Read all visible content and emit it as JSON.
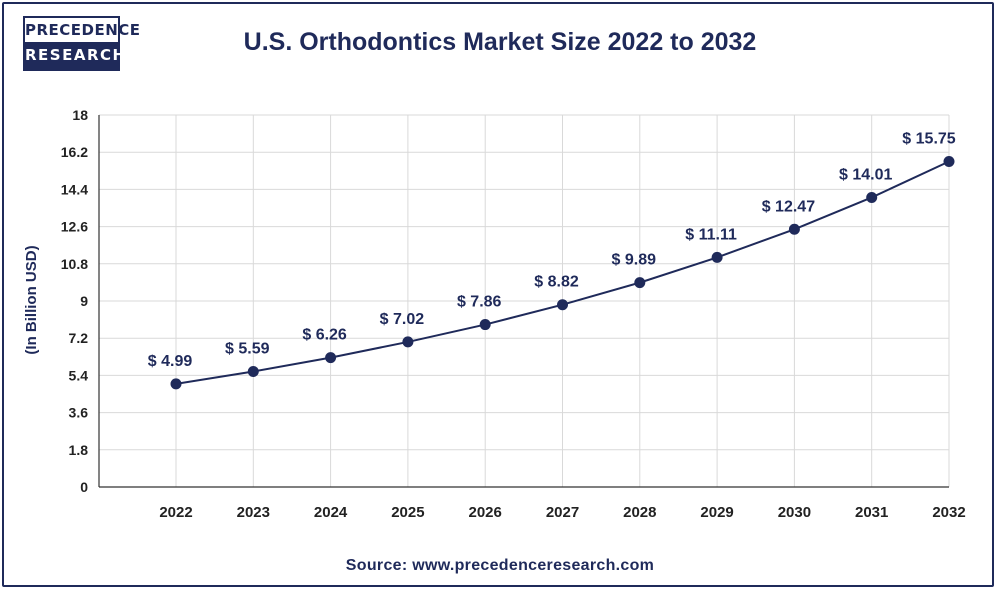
{
  "logo": {
    "line1": "PRECEDENCE",
    "line2": "RESEARCH"
  },
  "source": "Source: www.precedenceresearch.com",
  "colors": {
    "primary": "#1f2a5a",
    "grid": "#d9d9d9",
    "axis": "#333333"
  },
  "chart_data": {
    "type": "line",
    "title": "U.S. Orthodontics Market Size 2022 to 2032",
    "xlabel": "",
    "ylabel": "(In Billion USD)",
    "categories": [
      "2022",
      "2023",
      "2024",
      "2025",
      "2026",
      "2027",
      "2028",
      "2029",
      "2030",
      "2031",
      "2032"
    ],
    "values": [
      4.99,
      5.59,
      6.26,
      7.02,
      7.86,
      8.82,
      9.89,
      11.11,
      12.47,
      14.01,
      15.75
    ],
    "point_labels": [
      "$ 4.99",
      "$ 5.59",
      "$ 6.26",
      "$ 7.02",
      "$ 7.86",
      "$ 8.82",
      "$ 9.89",
      "$ 11.11",
      "$ 12.47",
      "$ 14.01",
      "$ 15.75"
    ],
    "ylim": [
      0,
      18
    ],
    "yticks": [
      "0",
      "1.8",
      "3.6",
      "5.4",
      "7.2",
      "9",
      "10.8",
      "12.6",
      "14.4",
      "16.2",
      "18"
    ],
    "grid": true,
    "legend": "none"
  }
}
